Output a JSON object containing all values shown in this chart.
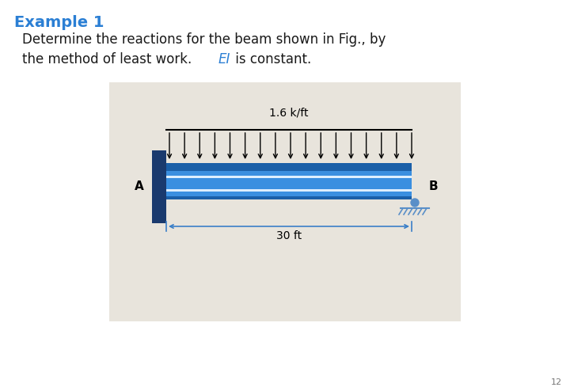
{
  "title": "Example 1",
  "title_color": "#2B7FD4",
  "body_text_line1": "Determine the reactions for the beam shown in Fig., by",
  "body_text_line2": "the method of least work. ",
  "body_text_italic": "EI",
  "body_text_end": " is constant.",
  "body_color": "#1a1a1a",
  "italic_color": "#2B7FD4",
  "bg_color": "#ffffff",
  "diagram_bg": "#e8e4dc",
  "beam_dark": "#1a5fa8",
  "beam_mid": "#2979c8",
  "beam_bright": "#3a8fe0",
  "beam_stripe": "#c8dff5",
  "fixed_wall_color": "#1a3a6e",
  "roller_color": "#5a8fc8",
  "roller_ground_color": "#5a8fc8",
  "dim_arrow_color": "#3a7fc8",
  "label_A": "A",
  "label_B": "B",
  "load_label": "1.6 k/ft",
  "dim_label": "30 ft",
  "page_num": "12",
  "n_arrows": 17
}
